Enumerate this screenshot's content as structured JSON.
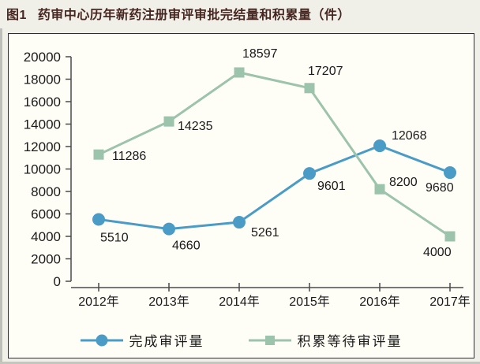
{
  "figure": {
    "label": "图1",
    "title": "药审中心历年新药注册审评审批完结量和积累量（件）"
  },
  "colors": {
    "series_blue": "#4a9cc7",
    "series_green": "#9cc3ab",
    "axis": "#4a4a4a",
    "text": "#1a1a1a",
    "title_text": "#472622",
    "chart_background": "#fffef6",
    "page_background": "#f0efe8"
  },
  "chart_data": {
    "type": "line",
    "title": "图1 药审中心历年新药注册审评审批完结量和积累量（件）",
    "categories": [
      "2012年",
      "2013年",
      "2014年",
      "2015年",
      "2016年",
      "2017年"
    ],
    "series": [
      {
        "name": "完成审评量",
        "marker": "circle",
        "color": "#4a9cc7",
        "values": [
          5510,
          4660,
          5261,
          9601,
          12068,
          9680
        ]
      },
      {
        "name": "积累等待审评量",
        "marker": "square",
        "color": "#9cc3ab",
        "values": [
          11286,
          14235,
          18597,
          17207,
          8200,
          4000
        ]
      }
    ],
    "ylim": [
      0,
      20000
    ],
    "ytick_step": 2000,
    "yticks": [
      0,
      2000,
      4000,
      6000,
      8000,
      10000,
      12000,
      14000,
      16000,
      18000,
      20000
    ],
    "grid": false,
    "value_labels": true,
    "legend_position": "bottom",
    "label_offsets": [
      [
        [
          2,
          28
        ],
        [
          4,
          26
        ],
        [
          15,
          18
        ],
        [
          10,
          21
        ],
        [
          15,
          -8
        ],
        [
          -31,
          24
        ]
      ],
      [
        [
          17,
          7
        ],
        [
          11,
          11
        ],
        [
          4,
          -19
        ],
        [
          -2,
          -17
        ],
        [
          12,
          -4
        ],
        [
          -34,
          25
        ]
      ]
    ]
  }
}
